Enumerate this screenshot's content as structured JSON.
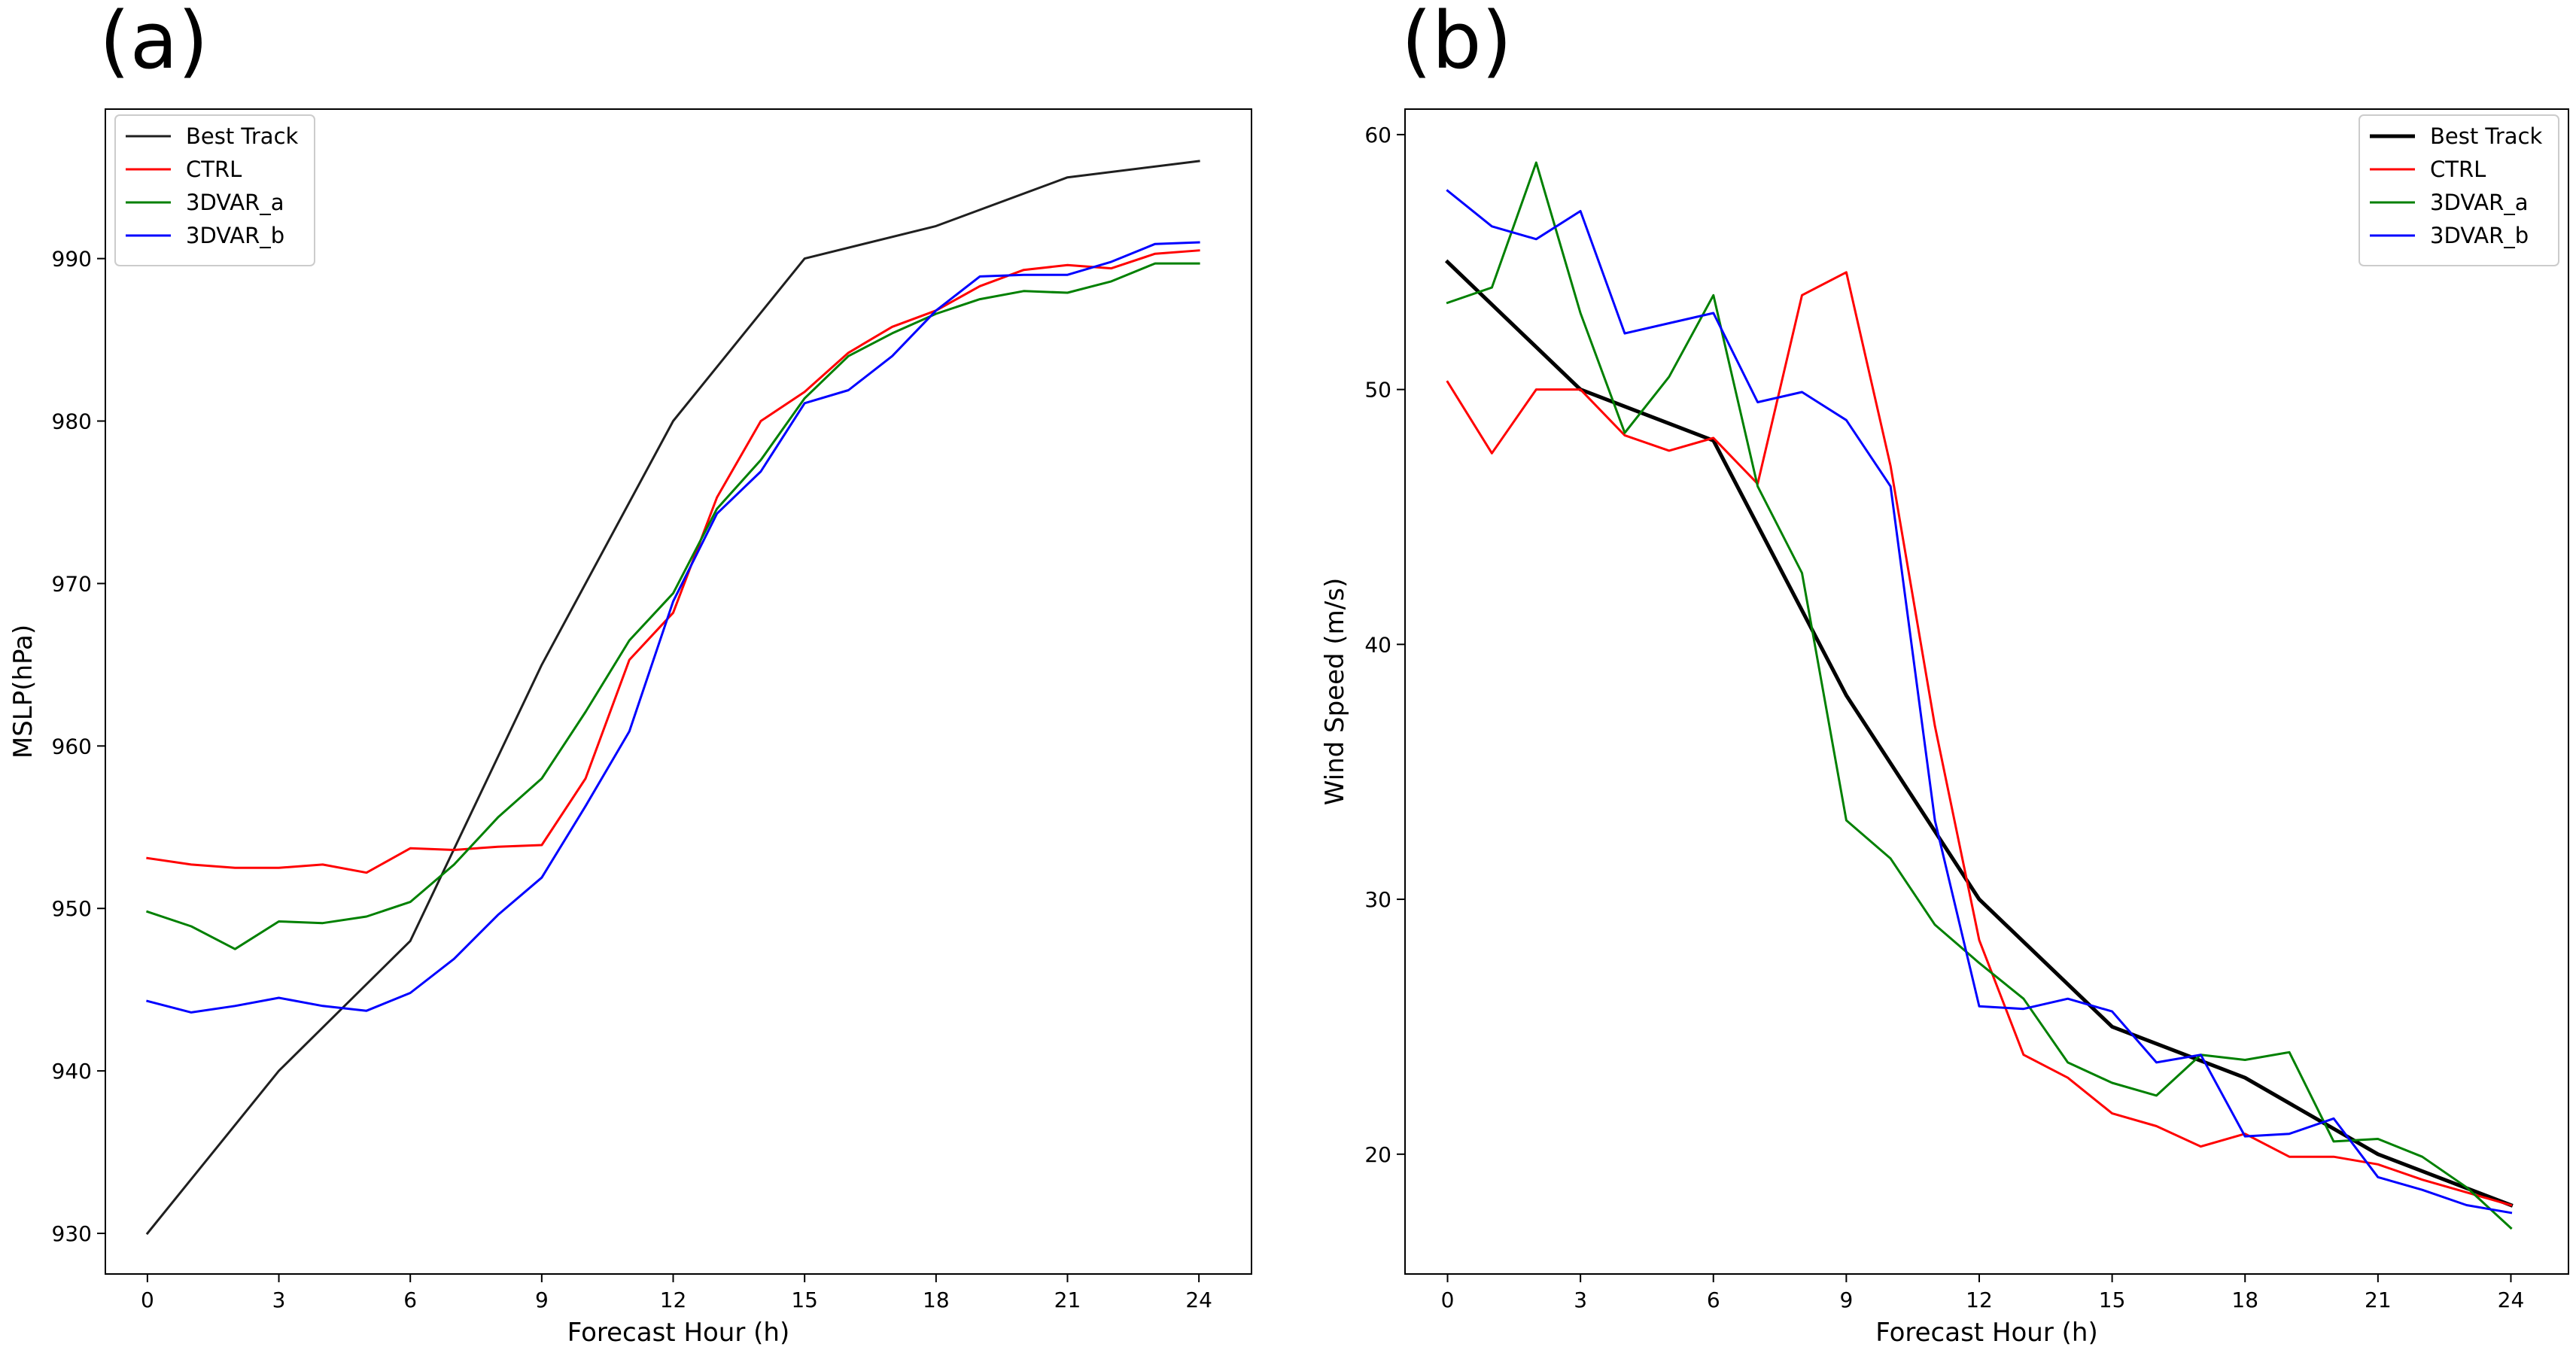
{
  "chart_data": [
    {
      "panel": "(a)",
      "type": "line",
      "xlabel": "Forecast Hour (h)",
      "ylabel": "MSLP(hPa)",
      "xlim": [
        -0.96,
        25.2
      ],
      "ylim": [
        927.5,
        999.2
      ],
      "xticks": [
        0,
        3,
        6,
        9,
        12,
        15,
        18,
        21,
        24
      ],
      "yticks": [
        930,
        940,
        950,
        960,
        970,
        980,
        990
      ],
      "grid": false,
      "legend": "top-left",
      "series": [
        {
          "name": "Best Track",
          "color": "#1f1f1f",
          "width": 3,
          "x": [
            0,
            3,
            6,
            9,
            12,
            15,
            18,
            21,
            24
          ],
          "y": [
            930,
            940,
            948,
            965,
            980,
            990,
            992,
            995,
            996
          ]
        },
        {
          "name": "CTRL",
          "color": "#ff0000",
          "width": 3,
          "x": [
            0,
            1,
            2,
            3,
            4,
            5,
            6,
            7,
            8,
            9,
            10,
            11,
            12,
            13,
            14,
            15,
            16,
            17,
            18,
            19,
            20,
            21,
            22,
            23,
            24
          ],
          "y": [
            953.1,
            952.7,
            952.5,
            952.5,
            952.7,
            952.2,
            953.7,
            953.6,
            953.8,
            953.9,
            958.0,
            965.3,
            968.2,
            975.3,
            980.0,
            981.8,
            984.2,
            985.8,
            986.8,
            988.3,
            989.3,
            989.6,
            989.4,
            990.3,
            990.5
          ]
        },
        {
          "name": "3DVAR_a",
          "color": "#008000",
          "width": 3,
          "x": [
            0,
            1,
            2,
            3,
            4,
            5,
            6,
            7,
            8,
            9,
            10,
            11,
            12,
            13,
            14,
            15,
            16,
            17,
            18,
            19,
            20,
            21,
            22,
            23,
            24
          ],
          "y": [
            949.8,
            948.9,
            947.5,
            949.2,
            949.1,
            949.5,
            950.4,
            952.7,
            955.6,
            958.0,
            962.1,
            966.5,
            969.4,
            974.6,
            977.6,
            981.4,
            984.0,
            985.4,
            986.6,
            987.5,
            988.0,
            987.9,
            988.6,
            989.7,
            989.7
          ]
        },
        {
          "name": "3DVAR_b",
          "color": "#0000ff",
          "width": 3,
          "x": [
            0,
            1,
            2,
            3,
            4,
            5,
            6,
            7,
            8,
            9,
            10,
            11,
            12,
            13,
            14,
            15,
            16,
            17,
            18,
            19,
            20,
            21,
            22,
            23,
            24
          ],
          "y": [
            944.3,
            943.6,
            944.0,
            944.5,
            944.0,
            943.7,
            944.8,
            946.9,
            949.6,
            951.9,
            956.3,
            960.9,
            968.9,
            974.3,
            976.9,
            981.1,
            981.9,
            984.0,
            986.8,
            988.9,
            989.0,
            989.0,
            989.8,
            990.9,
            991.0
          ]
        }
      ]
    },
    {
      "panel": "(b)",
      "type": "line",
      "xlabel": "Forecast Hour (h)",
      "ylabel": "Wind Speed (m/s)",
      "xlim": [
        -0.96,
        25.3
      ],
      "ylim": [
        15.3,
        61.0
      ],
      "xticks": [
        0,
        3,
        6,
        9,
        12,
        15,
        18,
        21,
        24
      ],
      "yticks": [
        20,
        30,
        40,
        50,
        60
      ],
      "grid": false,
      "legend": "top-right",
      "series": [
        {
          "name": "Best Track",
          "color": "#000000",
          "width": 5,
          "x": [
            0,
            3,
            6,
            9,
            12,
            15,
            18,
            21,
            24
          ],
          "y": [
            55,
            50,
            48,
            38,
            30,
            25,
            23,
            20,
            18
          ]
        },
        {
          "name": "CTRL",
          "color": "#ff0000",
          "width": 3,
          "x": [
            0,
            1,
            2,
            3,
            4,
            5,
            6,
            7,
            8,
            9,
            10,
            11,
            12,
            13,
            14,
            15,
            16,
            17,
            18,
            19,
            20,
            21,
            22,
            23,
            24
          ],
          "y": [
            50.3,
            47.5,
            50.0,
            50.0,
            48.2,
            47.6,
            48.1,
            46.3,
            53.7,
            54.6,
            47.0,
            36.8,
            28.4,
            23.9,
            23.0,
            21.6,
            21.1,
            20.3,
            20.8,
            19.9,
            19.9,
            19.6,
            19.0,
            18.5,
            18.0
          ]
        },
        {
          "name": "3DVAR_a",
          "color": "#008000",
          "width": 3,
          "x": [
            0,
            1,
            2,
            3,
            4,
            5,
            6,
            7,
            8,
            9,
            10,
            11,
            12,
            13,
            14,
            15,
            16,
            17,
            18,
            19,
            20,
            21,
            22,
            23,
            24
          ],
          "y": [
            53.4,
            54.0,
            58.9,
            53.0,
            48.3,
            50.5,
            53.7,
            46.2,
            42.8,
            33.1,
            31.6,
            29.0,
            27.5,
            26.1,
            23.6,
            22.8,
            22.3,
            23.9,
            23.7,
            24.0,
            20.5,
            20.6,
            19.9,
            18.7,
            17.1
          ]
        },
        {
          "name": "3DVAR_b",
          "color": "#0000ff",
          "width": 3,
          "x": [
            0,
            1,
            2,
            3,
            4,
            5,
            6,
            7,
            8,
            9,
            10,
            11,
            12,
            13,
            14,
            15,
            16,
            17,
            18,
            19,
            20,
            21,
            22,
            23,
            24
          ],
          "y": [
            57.8,
            56.4,
            55.9,
            57.0,
            52.2,
            52.6,
            53.0,
            49.5,
            49.9,
            48.8,
            46.2,
            33.1,
            25.8,
            25.7,
            26.1,
            25.6,
            23.6,
            23.9,
            20.7,
            20.8,
            21.4,
            19.1,
            18.6,
            18.0,
            17.7
          ]
        }
      ]
    }
  ]
}
